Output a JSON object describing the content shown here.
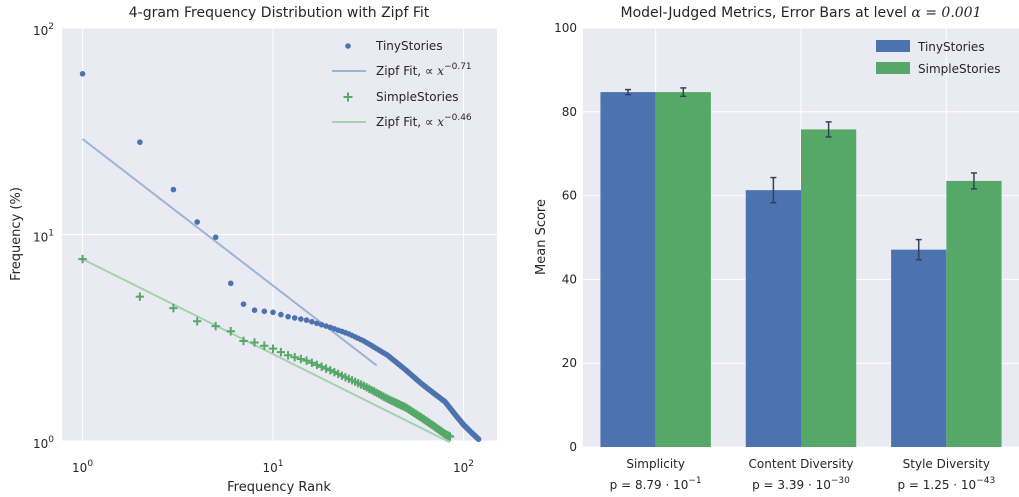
{
  "chart_data": [
    {
      "type": "scatter",
      "title": "4-gram Frequency Distribution with Zipf Fit",
      "xlabel": "Frequency Rank",
      "ylabel": "Frequency (%)",
      "xscale": "log",
      "yscale": "log",
      "xlim": [
        0.78,
        150
      ],
      "ylim": [
        1,
        100
      ],
      "xticks": [
        {
          "value": 1,
          "base": "10",
          "exp": "0"
        },
        {
          "value": 10,
          "base": "10",
          "exp": "1"
        },
        {
          "value": 100,
          "base": "10",
          "exp": "2"
        }
      ],
      "yticks": [
        {
          "value": 1,
          "base": "10",
          "exp": "0"
        },
        {
          "value": 10,
          "base": "10",
          "exp": "1"
        },
        {
          "value": 100,
          "base": "10",
          "exp": "2"
        }
      ],
      "legend_position": "top-right",
      "grid": true,
      "background": "#eaeaf2",
      "series": [
        {
          "name": "TinyStories",
          "marker": "dot",
          "color": "#4c72b0",
          "x_range": [
            1,
            120
          ],
          "anchors": [
            [
              1,
              60
            ],
            [
              2,
              28
            ],
            [
              3,
              16.5
            ],
            [
              4,
              11.5
            ],
            [
              5,
              9.7
            ],
            [
              6,
              5.8
            ],
            [
              7,
              4.6
            ],
            [
              8,
              4.3
            ],
            [
              10,
              4.2
            ],
            [
              12,
              4.0
            ],
            [
              15,
              3.85
            ],
            [
              20,
              3.55
            ],
            [
              25,
              3.3
            ],
            [
              30,
              3.05
            ],
            [
              40,
              2.6
            ],
            [
              50,
              2.2
            ],
            [
              60,
              1.9
            ],
            [
              70,
              1.7
            ],
            [
              80,
              1.55
            ],
            [
              90,
              1.35
            ],
            [
              100,
              1.2
            ],
            [
              110,
              1.1
            ],
            [
              120,
              1.02
            ]
          ]
        },
        {
          "name": "SimpleStories",
          "marker": "plus",
          "color": "#55a868",
          "x_range": [
            1,
            85
          ],
          "anchors": [
            [
              1,
              7.6
            ],
            [
              2,
              5.0
            ],
            [
              3,
              4.4
            ],
            [
              4,
              3.8
            ],
            [
              5,
              3.6
            ],
            [
              6,
              3.4
            ],
            [
              7,
              3.05
            ],
            [
              8,
              3.0
            ],
            [
              10,
              2.8
            ],
            [
              12,
              2.6
            ],
            [
              15,
              2.45
            ],
            [
              20,
              2.2
            ],
            [
              25,
              2.0
            ],
            [
              30,
              1.85
            ],
            [
              40,
              1.6
            ],
            [
              50,
              1.45
            ],
            [
              60,
              1.3
            ],
            [
              70,
              1.18
            ],
            [
              80,
              1.08
            ],
            [
              85,
              1.05
            ]
          ]
        }
      ],
      "fits": [
        {
          "name_prefix": "Zipf Fit, ∝ ",
          "var": "x",
          "exponent": "−0.71",
          "alpha": -0.71,
          "coef": 29,
          "x_range": [
            1,
            35
          ],
          "color": "#9cb2d6"
        },
        {
          "name_prefix": "Zipf Fit, ∝ ",
          "var": "x",
          "exponent": "−0.46",
          "alpha": -0.46,
          "coef": 7.6,
          "x_range": [
            1,
            85
          ],
          "color": "#a6d1ae"
        }
      ]
    },
    {
      "type": "bar",
      "title_prefix": "Model-Judged Metrics, Error Bars at level ",
      "title_math": "α = 0.001",
      "xlabel": "",
      "ylabel": "Mean Score",
      "ylim": [
        0,
        100
      ],
      "yticks": [
        0,
        20,
        40,
        60,
        80,
        100
      ],
      "legend_position": "top-right",
      "grid": true,
      "background": "#eaeaf2",
      "categories": [
        "Simplicity",
        "Content Diversity",
        "Style Diversity"
      ],
      "pvalues": [
        {
          "label": "p = 8.79 · 10",
          "exp": "−1"
        },
        {
          "label": "p = 3.39 · 10",
          "exp": "−30"
        },
        {
          "label": "p = 1.25 · 10",
          "exp": "−43"
        }
      ],
      "series": [
        {
          "name": "TinyStories",
          "color": "#4c72b0",
          "values": [
            84.7,
            61.3,
            47.1
          ],
          "errors": [
            0.6,
            3.0,
            2.4
          ]
        },
        {
          "name": "SimpleStories",
          "color": "#55a868",
          "values": [
            84.7,
            75.8,
            63.5
          ],
          "errors": [
            1.0,
            1.8,
            1.9
          ]
        }
      ]
    }
  ]
}
